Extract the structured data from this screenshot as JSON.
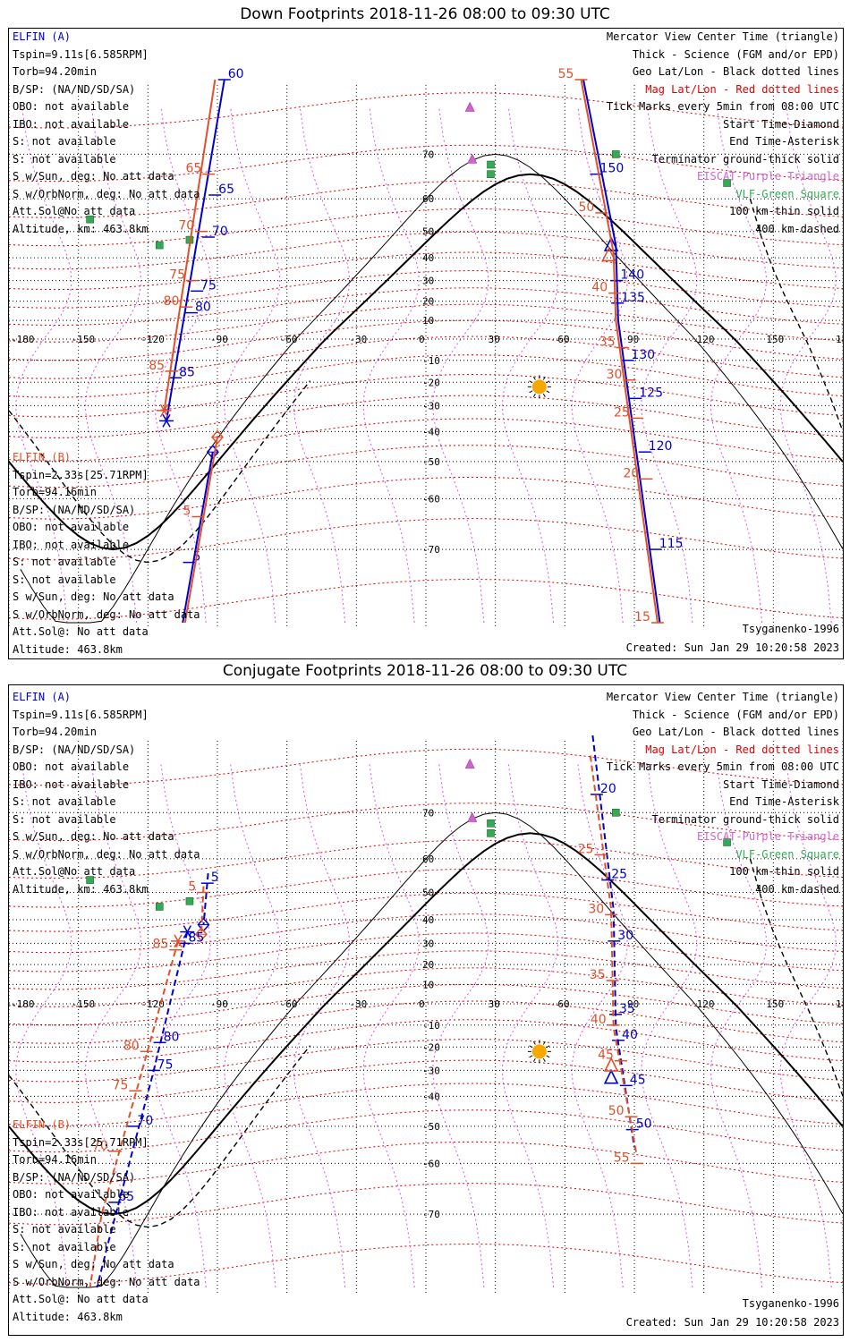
{
  "panels": [
    {
      "title": "Down Footprints 2018-11-26 08:00 to 09:30 UTC",
      "elfin_a": {
        "label": "ELFIN (A)",
        "lines": [
          "Tspin=9.11s[6.585RPM]",
          "Torb=94.20min",
          "B/SP: (NA/ND/SD/SA)",
          "OBO: not available",
          "IBO: not available",
          "S: not available",
          "S: not available",
          "S w/Sun, deg: No att data",
          "S w/OrbNorm, deg: No att data",
          "Att.Sol@No att data",
          "Altitude, km: 463.8km"
        ]
      },
      "elfin_b": {
        "label": "ELFIN (B)",
        "lines": [
          "Tspin=2.33s[25.71RPM]",
          "Torb=94.16min",
          "B/SP: (NA/ND/SD/SA)",
          "OBO: not available",
          "IBO: not available",
          "S: not available",
          "S: not available",
          "S w/Sun, deg: No att data",
          "S w/OrbNorm, deg: No att data",
          "Att.Sol@: No att data",
          "Altitude: 463.8km"
        ]
      },
      "key": [
        "Mercator View Center Time (triangle)",
        "Thick - Science (FGM and/or EPD)",
        "Geo Lat/Lon - Black dotted lines",
        "Mag Lat/Lon - Red dotted lines",
        "Tick Marks every 5min from 08:00 UTC",
        "Start Time-Diamond",
        "End Time-Asterisk",
        "Terminator ground-thick solid",
        "EISCAT-Purple Triangle",
        "VLF-Green Square",
        "100 km-thin solid",
        "400 km-dashed"
      ],
      "model": "Tsyganenko-1996",
      "created": "Created: Sun Jan 29 10:20:58 2023",
      "tracks": [
        {
          "color": "#0000cc",
          "style": "solid",
          "points": [
            [
              -87,
              80
            ],
            [
              -112,
              -36
            ]
          ],
          "ticks": [
            {
              "lat": 80,
              "label": "60"
            },
            {
              "lat": 61,
              "label": "65"
            },
            {
              "lat": 48,
              "label": "70"
            },
            {
              "lat": 25,
              "label": "75"
            },
            {
              "lat": 14,
              "label": "80"
            },
            {
              "lat": -18,
              "label": "85"
            }
          ],
          "end": [
            -112,
            -36
          ]
        },
        {
          "color": "#e0502a",
          "style": "solid",
          "points": [
            [
              -91,
              80
            ],
            [
              -113,
              -32
            ]
          ],
          "ticks": [
            {
              "lat": 66,
              "label": "65"
            },
            {
              "lat": 50,
              "label": "70"
            },
            {
              "lat": 30,
              "label": "75"
            },
            {
              "lat": 17,
              "label": "80"
            },
            {
              "lat": -15,
              "label": "85"
            }
          ],
          "end": [
            -113,
            -32
          ]
        },
        {
          "color": "#0000cc",
          "style": "solid",
          "points": [
            [
              -92,
              -47
            ],
            [
              -105,
              -79
            ]
          ],
          "ticks": [
            {
              "lat": -72,
              "label": "5"
            }
          ],
          "start": [
            -92,
            -47
          ]
        },
        {
          "color": "#e0502a",
          "style": "solid",
          "points": [
            [
              -90,
              -42
            ],
            [
              -104,
              -79
            ]
          ],
          "ticks": [
            {
              "lat": -64,
              "label": "5"
            }
          ],
          "start": [
            -90,
            -42
          ]
        },
        {
          "color": "#0000cc",
          "style": "solid",
          "points": [
            [
              68,
              80
            ],
            [
              82,
              45
            ],
            [
              83,
              10
            ],
            [
              101,
              -79
            ]
          ],
          "ticks": [
            {
              "lat": 66,
              "label": "150"
            },
            {
              "lat": 30,
              "label": "140"
            },
            {
              "lat": 19,
              "label": "135"
            },
            {
              "lat": -10,
              "label": "130"
            },
            {
              "lat": -27,
              "label": "125"
            },
            {
              "lat": -47,
              "label": "120"
            },
            {
              "lat": -70,
              "label": "115"
            }
          ],
          "center": [
            80,
            45
          ]
        },
        {
          "color": "#e0502a",
          "style": "solid",
          "points": [
            [
              67,
              80
            ],
            [
              81,
              42
            ],
            [
              82,
              10
            ],
            [
              100,
              -79
            ]
          ],
          "ticks": [
            {
              "lat": 80,
              "label": "55"
            },
            {
              "lat": 56,
              "label": "50"
            },
            {
              "lat": 24,
              "label": "40"
            },
            {
              "lat": -4,
              "label": "35"
            },
            {
              "lat": -19,
              "label": "30"
            },
            {
              "lat": -35,
              "label": "25"
            },
            {
              "lat": -55,
              "label": "20"
            },
            {
              "lat": -79,
              "label": "15"
            }
          ],
          "center": [
            79,
            41
          ]
        }
      ],
      "vlf": [
        [
          -145,
          54
        ],
        [
          -115,
          45
        ],
        [
          -102,
          47
        ],
        [
          28,
          68
        ],
        [
          28,
          66
        ],
        [
          82,
          70
        ],
        [
          130,
          64
        ]
      ],
      "eiscat": [
        [
          19,
          77
        ],
        [
          20,
          69
        ]
      ],
      "sun": [
        49,
        -22
      ]
    },
    {
      "title": "Conjugate Footprints 2018-11-26 08:00 to 09:30 UTC",
      "elfin_a": {
        "label": "ELFIN (A)",
        "lines": [
          "Tspin=9.11s[6.585RPM]",
          "Torb=94.20min",
          "B/SP: (NA/ND/SD/SA)",
          "OBO: not available",
          "IBO: not available",
          "S: not available",
          "S: not available",
          "S w/Sun, deg: No att data",
          "S w/OrbNorm, deg: No att data",
          "Att.Sol@No att data",
          "Altitude, km: 463.8km"
        ]
      },
      "elfin_b": {
        "label": "ELFIN (B)",
        "lines": [
          "Tspin=2.33s[25.71RPM]",
          "Torb=94.16min",
          "B/SP: (NA/ND/SD/SA)",
          "OBO: not available",
          "IBO: not available",
          "S: not available",
          "S: not available",
          "S w/Sun, deg: No att data",
          "S w/OrbNorm, deg: No att data",
          "Att.Sol@: No att data",
          "Altitude: 463.8km"
        ]
      },
      "key": [
        "Mercator View Center Time (triangle)",
        "Thick - Science (FGM and/or EPD)",
        "Geo Lat/Lon - Black dotted lines",
        "Mag Lat/Lon - Red dotted lines",
        "Tick Marks every 5min from 08:00 UTC",
        "Start Time-Diamond",
        "End Time-Asterisk",
        "Terminator ground-thick solid",
        "EISCAT-Purple Triangle",
        "VLF-Green Square",
        "100 km-thin solid",
        "400 km-dashed"
      ],
      "model": "Tsyganenko-1996",
      "created": "Created: Sun Jan 29 10:20:58 2023",
      "tracks": [
        {
          "color": "#0000cc",
          "style": "dashed",
          "points": [
            [
              -94,
              56
            ],
            [
              -96,
              38
            ]
          ],
          "ticks": [
            {
              "lat": 53,
              "label": "5"
            }
          ],
          "start": [
            -96,
            38
          ]
        },
        {
          "color": "#e0502a",
          "style": "dashed",
          "points": [
            [
              -96,
              52
            ],
            [
              -97,
              34
            ]
          ],
          "ticks": [
            {
              "lat": 50,
              "label": "5"
            }
          ],
          "start": [
            -97,
            34
          ]
        },
        {
          "color": "#0000cc",
          "style": "dashed",
          "points": [
            [
              -103,
              35
            ],
            [
              -118,
              -32
            ],
            [
              -137,
              -74
            ],
            [
              -142,
              -79
            ]
          ],
          "ticks": [
            {
              "lat": 30,
              "label": "85"
            },
            {
              "lat": -18,
              "label": "80"
            },
            {
              "lat": -30,
              "label": "75"
            },
            {
              "lat": -50,
              "label": "70"
            },
            {
              "lat": -68,
              "label": "65"
            }
          ],
          "end": [
            -103,
            35
          ]
        },
        {
          "color": "#e0502a",
          "style": "dashed",
          "points": [
            [
              -107,
              31
            ],
            [
              -124,
              -35
            ],
            [
              -140,
              -70
            ],
            [
              -145,
              -79
            ]
          ],
          "ticks": [
            {
              "lat": 27,
              "label": "85"
            },
            {
              "lat": -22,
              "label": "80"
            },
            {
              "lat": -38,
              "label": "75"
            },
            {
              "lat": -57,
              "label": "70"
            }
          ],
          "end": [
            -107,
            31
          ]
        },
        {
          "color": "#0000cc",
          "style": "dashed",
          "points": [
            [
              72,
              80
            ],
            [
              81,
              44
            ],
            [
              82,
              -11
            ],
            [
              90,
              -56
            ]
          ],
          "ticks": [
            {
              "lat": 73,
              "label": "20"
            },
            {
              "lat": 54,
              "label": "25"
            },
            {
              "lat": 31,
              "label": "30"
            },
            {
              "lat": -5,
              "label": "35"
            },
            {
              "lat": -17,
              "label": "40"
            },
            {
              "lat": -36,
              "label": "45"
            },
            {
              "lat": -51,
              "label": "50"
            }
          ],
          "center": [
            80,
            -33
          ]
        },
        {
          "color": "#e0502a",
          "style": "dashed",
          "points": [
            [
              71,
              78
            ],
            [
              80,
              44
            ],
            [
              81,
              -11
            ],
            [
              91,
              -58
            ]
          ],
          "ticks": [
            {
              "lat": 61,
              "label": "25"
            },
            {
              "lat": 42,
              "label": "30"
            },
            {
              "lat": 12,
              "label": "35"
            },
            {
              "lat": -10,
              "label": "40"
            },
            {
              "lat": -26,
              "label": "45"
            },
            {
              "lat": -47,
              "label": "50"
            },
            {
              "lat": -60,
              "label": "55"
            }
          ],
          "center": [
            80,
            -28
          ]
        }
      ],
      "vlf": [
        [
          -145,
          54
        ],
        [
          -115,
          45
        ],
        [
          -102,
          47
        ],
        [
          28,
          68
        ],
        [
          28,
          66
        ],
        [
          82,
          70
        ],
        [
          130,
          64
        ]
      ],
      "eiscat": [
        [
          19,
          77
        ],
        [
          20,
          69
        ]
      ],
      "sun": [
        49,
        -22
      ]
    }
  ],
  "axis": {
    "lon_ticks": [
      -180,
      -150,
      -120,
      -90,
      -60,
      -30,
      0,
      30,
      60,
      90,
      120,
      150,
      180
    ],
    "lon_labels": [
      "-180",
      "-150",
      "-120",
      "-90",
      "-60",
      "-30",
      "0",
      "30",
      "60",
      "90",
      "120",
      "150",
      "180"
    ],
    "lat_ticks": [
      70,
      60,
      50,
      40,
      30,
      20,
      10,
      -10,
      -20,
      -30,
      -40,
      -50,
      -60,
      -70
    ],
    "lat_labels": [
      "70",
      "60",
      "50",
      "40",
      "30",
      "20",
      "10",
      "-10",
      "-20",
      "-30",
      "-40",
      "-50",
      "-60",
      "-70"
    ]
  },
  "colors": {
    "elfin_a": "#0000cc",
    "elfin_b": "#e0502a",
    "mag_grid": "#e00000",
    "geo_grid": "#000000",
    "eiscat": "#cc66cc",
    "vlf": "#33aa55",
    "sun": "#f5a800"
  }
}
